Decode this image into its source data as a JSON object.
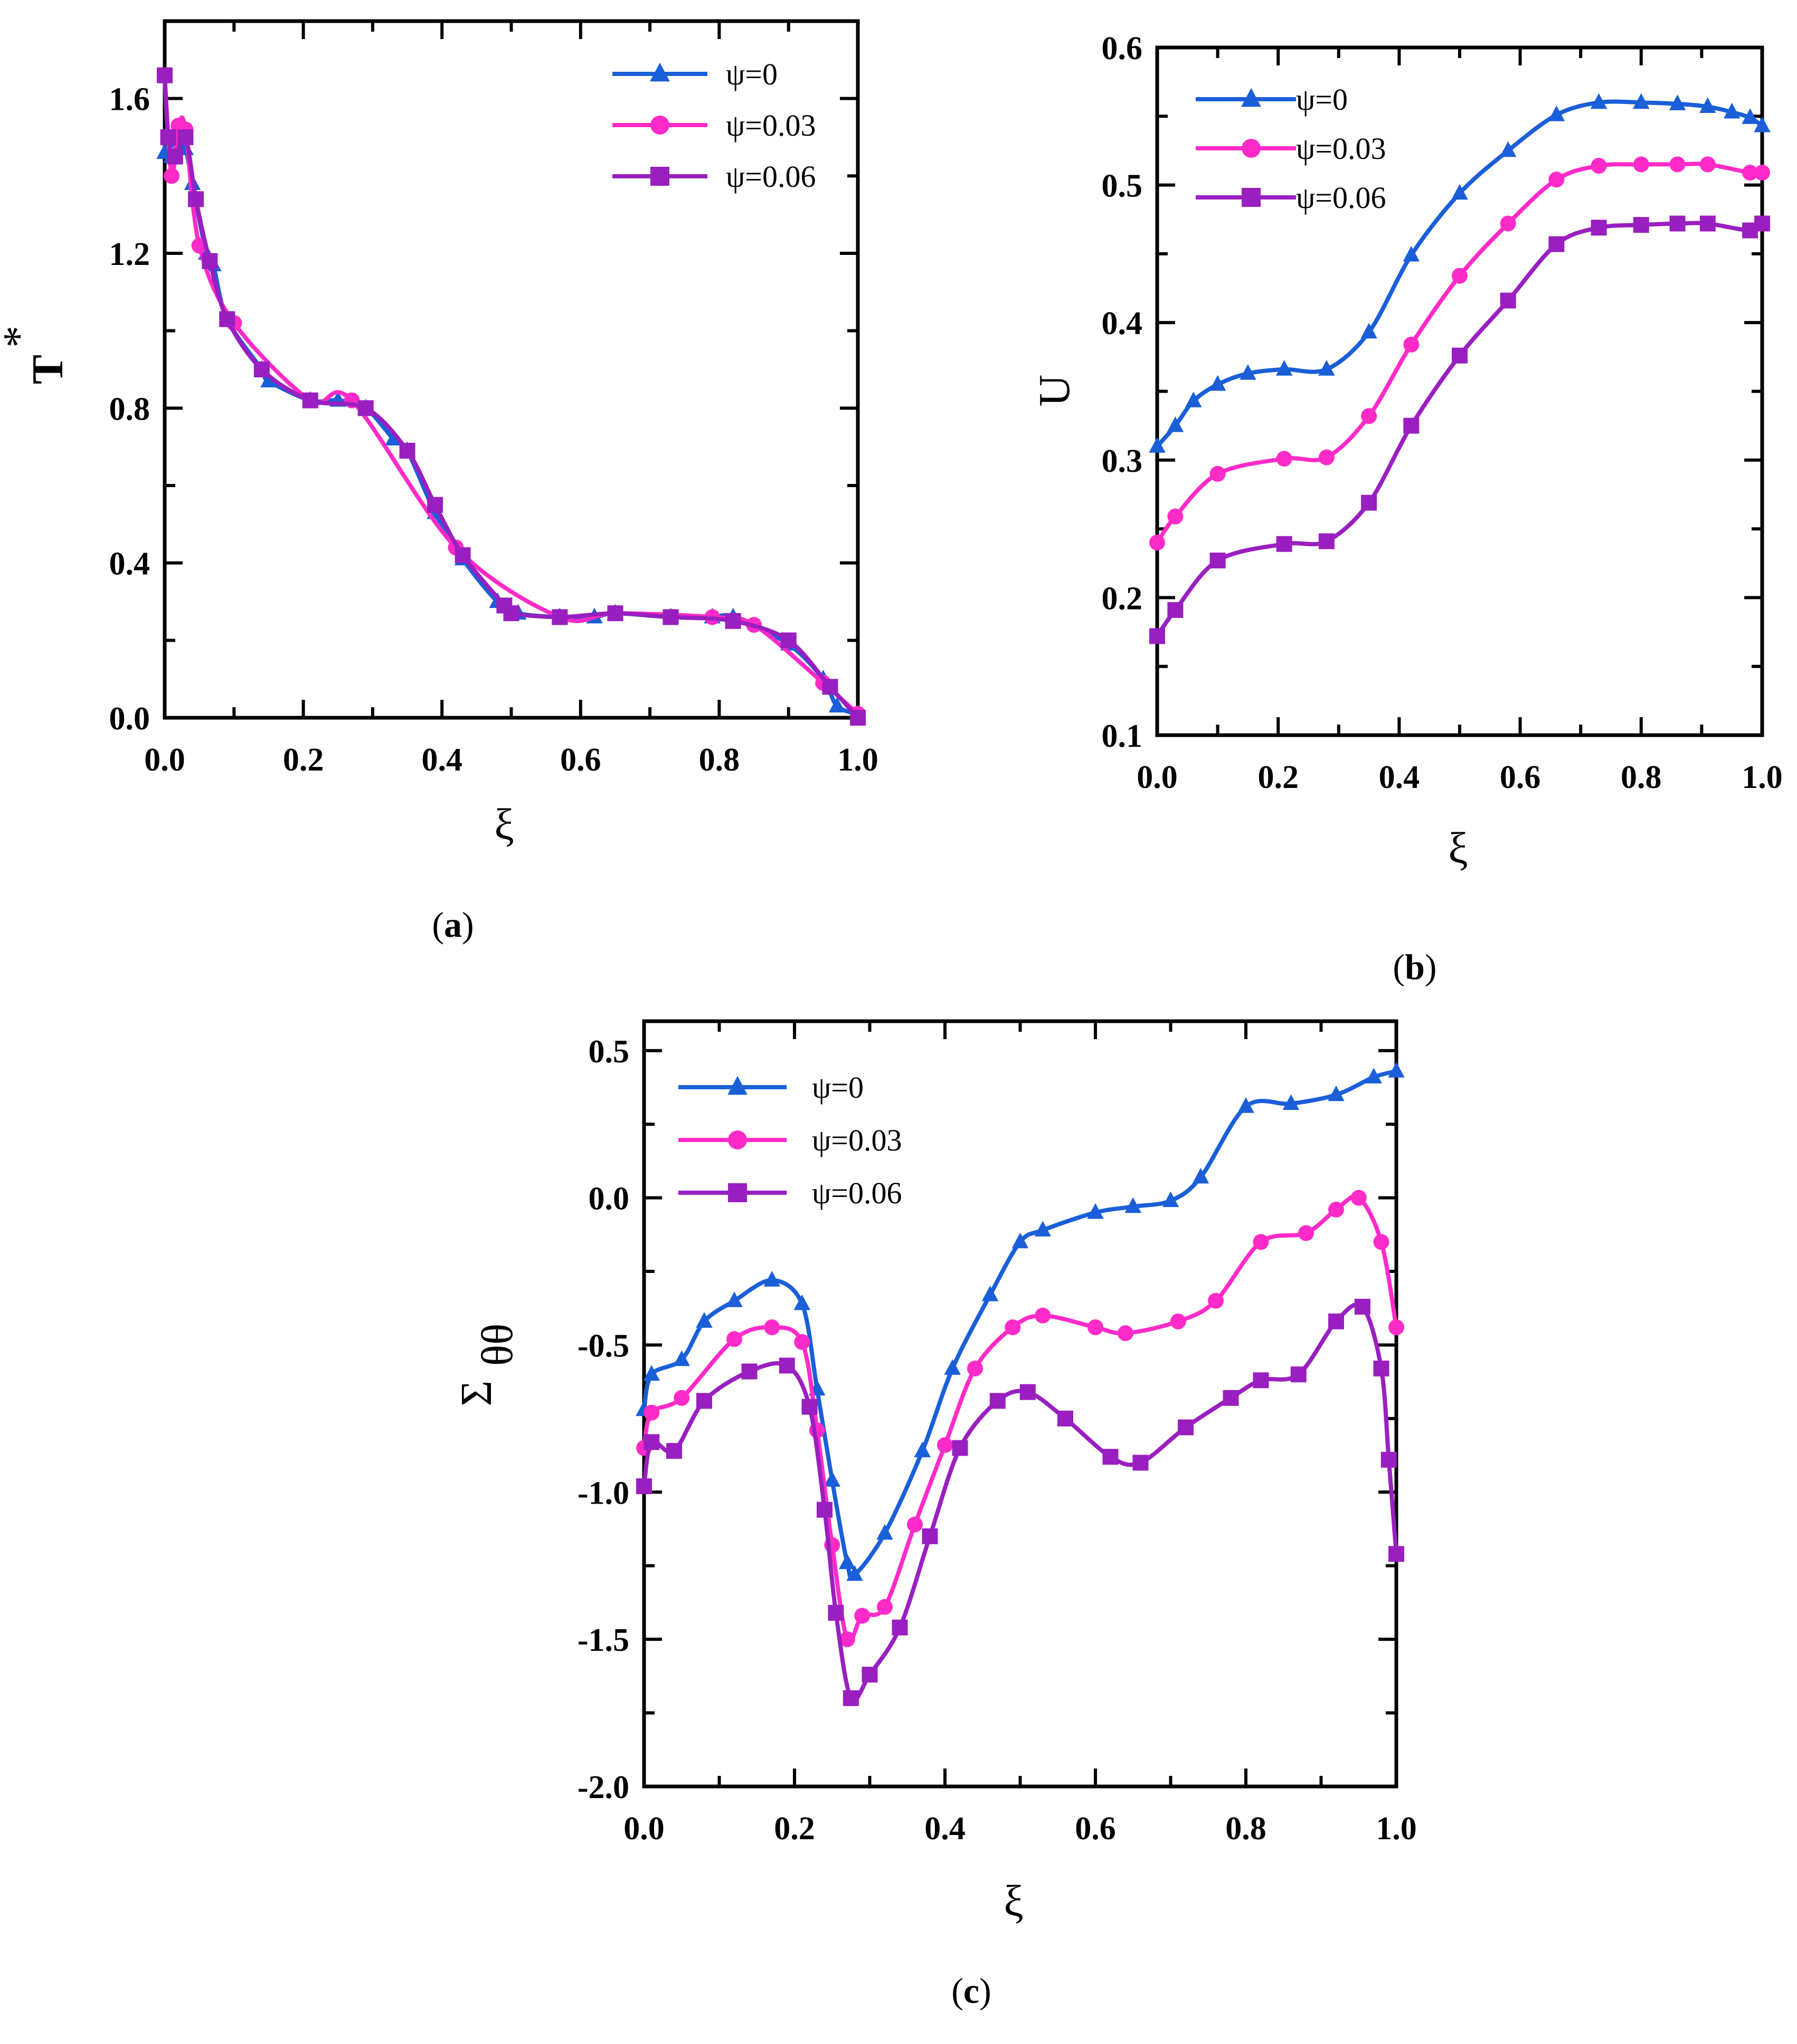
{
  "colors": {
    "psi0": "#1a5fd8",
    "psi003": "#ff2bc8",
    "psi006": "#9a1fc0"
  },
  "chart_data": [
    {
      "id": "a",
      "type": "line",
      "caption": "(a)",
      "caption_letter": "a",
      "xlabel": "ξ",
      "ylabel": "T",
      "ylabel_sup": "*",
      "xlim": [
        0,
        1.0
      ],
      "ylim": [
        0,
        1.8
      ],
      "xticks": [
        "0.0",
        "0.2",
        "0.4",
        "0.6",
        "0.8",
        "1.0"
      ],
      "yticks": [
        "0.0",
        "0.4",
        "0.8",
        "1.2",
        "1.6"
      ],
      "legend": [
        "ψ=0",
        "ψ=0.03",
        "ψ=0.06"
      ],
      "series": [
        {
          "name": "ψ=0",
          "marker": "triangle",
          "x": [
            0.0,
            0.01,
            0.02,
            0.03,
            0.04,
            0.06,
            0.07,
            0.09,
            0.14,
            0.15,
            0.21,
            0.25,
            0.29,
            0.33,
            0.35,
            0.39,
            0.43,
            0.48,
            0.51,
            0.57,
            0.62,
            0.65,
            0.73,
            0.79,
            0.82,
            0.9,
            0.95,
            0.97,
            1.0
          ],
          "y": [
            1.46,
            1.45,
            1.49,
            1.47,
            1.38,
            1.2,
            1.17,
            1.03,
            0.9,
            0.87,
            0.82,
            0.82,
            0.8,
            0.72,
            0.69,
            0.53,
            0.41,
            0.3,
            0.27,
            0.26,
            0.26,
            0.27,
            0.26,
            0.26,
            0.26,
            0.19,
            0.1,
            0.03,
            0.01
          ]
        },
        {
          "name": "ψ=0.03",
          "marker": "circle",
          "x": [
            0.0,
            0.01,
            0.02,
            0.03,
            0.05,
            0.1,
            0.21,
            0.27,
            0.42,
            0.57,
            0.65,
            0.79,
            0.85,
            0.95,
            1.0
          ],
          "y": [
            1.66,
            1.4,
            1.53,
            1.52,
            1.22,
            1.02,
            0.82,
            0.82,
            0.44,
            0.26,
            0.27,
            0.26,
            0.24,
            0.09,
            0.01
          ]
        },
        {
          "name": "ψ=0.06",
          "marker": "square",
          "x": [
            0.0,
            0.005,
            0.015,
            0.03,
            0.045,
            0.065,
            0.09,
            0.14,
            0.21,
            0.29,
            0.35,
            0.39,
            0.43,
            0.49,
            0.5,
            0.57,
            0.65,
            0.73,
            0.82,
            0.9,
            0.96,
            1.0
          ],
          "y": [
            1.66,
            1.5,
            1.45,
            1.5,
            1.34,
            1.18,
            1.03,
            0.9,
            0.82,
            0.8,
            0.69,
            0.55,
            0.42,
            0.29,
            0.27,
            0.26,
            0.27,
            0.26,
            0.25,
            0.2,
            0.08,
            0.0
          ]
        }
      ]
    },
    {
      "id": "b",
      "type": "line",
      "caption": "(b)",
      "caption_letter": "b",
      "xlabel": "ξ",
      "ylabel": "U",
      "xlim": [
        0,
        1.0
      ],
      "ylim": [
        0.1,
        0.6
      ],
      "xticks": [
        "0.0",
        "0.2",
        "0.4",
        "0.6",
        "0.8",
        "1.0"
      ],
      "yticks": [
        "0.1",
        "0.2",
        "0.3",
        "0.4",
        "0.5",
        "0.6"
      ],
      "legend": [
        "ψ=0",
        "ψ=0.03",
        "ψ=0.06"
      ],
      "series": [
        {
          "name": "ψ=0",
          "marker": "triangle",
          "x": [
            0.0,
            0.03,
            0.06,
            0.1,
            0.15,
            0.21,
            0.28,
            0.35,
            0.42,
            0.5,
            0.58,
            0.66,
            0.73,
            0.8,
            0.86,
            0.91,
            0.95,
            0.98,
            1.0
          ],
          "y": [
            0.31,
            0.325,
            0.343,
            0.355,
            0.363,
            0.366,
            0.366,
            0.393,
            0.449,
            0.494,
            0.525,
            0.551,
            0.56,
            0.56,
            0.559,
            0.557,
            0.553,
            0.549,
            0.543
          ]
        },
        {
          "name": "ψ=0.03",
          "marker": "circle",
          "x": [
            0.0,
            0.03,
            0.1,
            0.21,
            0.28,
            0.35,
            0.42,
            0.5,
            0.58,
            0.66,
            0.73,
            0.8,
            0.86,
            0.91,
            0.98,
            1.0
          ],
          "y": [
            0.24,
            0.259,
            0.29,
            0.301,
            0.302,
            0.332,
            0.384,
            0.434,
            0.472,
            0.504,
            0.514,
            0.515,
            0.515,
            0.515,
            0.509,
            0.509
          ]
        },
        {
          "name": "ψ=0.06",
          "marker": "square",
          "x": [
            0.0,
            0.03,
            0.1,
            0.21,
            0.28,
            0.35,
            0.42,
            0.5,
            0.58,
            0.66,
            0.73,
            0.8,
            0.86,
            0.91,
            0.98,
            1.0
          ],
          "y": [
            0.172,
            0.191,
            0.227,
            0.239,
            0.241,
            0.269,
            0.325,
            0.376,
            0.416,
            0.457,
            0.469,
            0.471,
            0.472,
            0.472,
            0.467,
            0.472
          ]
        }
      ]
    },
    {
      "id": "c",
      "type": "line",
      "caption": "(c)",
      "caption_letter": "c",
      "xlabel": "ξ",
      "ylabel": "Σ",
      "ylabel_sub": "θθ",
      "xlim": [
        0,
        1.0
      ],
      "ylim": [
        -2.0,
        0.6
      ],
      "xticks": [
        "0.0",
        "0.2",
        "0.4",
        "0.6",
        "0.8",
        "1.0"
      ],
      "yticks": [
        "-2.0",
        "-1.5",
        "-1.0",
        "-0.5",
        "0.0",
        "0.5"
      ],
      "legend": [
        "ψ=0",
        "ψ=0.03",
        "ψ=0.06"
      ],
      "series": [
        {
          "name": "ψ=0",
          "marker": "triangle",
          "x": [
            0.0,
            0.01,
            0.05,
            0.08,
            0.12,
            0.17,
            0.21,
            0.23,
            0.25,
            0.27,
            0.28,
            0.32,
            0.37,
            0.41,
            0.46,
            0.5,
            0.53,
            0.6,
            0.65,
            0.7,
            0.74,
            0.8,
            0.86,
            0.92,
            0.97,
            1.0
          ],
          "y": [
            -0.72,
            -0.6,
            -0.55,
            -0.42,
            -0.35,
            -0.28,
            -0.36,
            -0.65,
            -0.96,
            -1.24,
            -1.28,
            -1.14,
            -0.86,
            -0.58,
            -0.33,
            -0.15,
            -0.11,
            -0.05,
            -0.03,
            -0.01,
            0.07,
            0.31,
            0.32,
            0.35,
            0.41,
            0.43
          ]
        },
        {
          "name": "ψ=0.03",
          "marker": "circle",
          "x": [
            0.0,
            0.01,
            0.05,
            0.12,
            0.17,
            0.21,
            0.23,
            0.25,
            0.27,
            0.29,
            0.32,
            0.36,
            0.4,
            0.44,
            0.49,
            0.53,
            0.6,
            0.64,
            0.71,
            0.76,
            0.82,
            0.88,
            0.92,
            0.95,
            0.98,
            1.0
          ],
          "y": [
            -0.85,
            -0.73,
            -0.68,
            -0.48,
            -0.44,
            -0.49,
            -0.79,
            -1.18,
            -1.5,
            -1.42,
            -1.39,
            -1.11,
            -0.84,
            -0.58,
            -0.44,
            -0.4,
            -0.44,
            -0.46,
            -0.42,
            -0.35,
            -0.15,
            -0.12,
            -0.04,
            0.0,
            -0.15,
            -0.44
          ]
        },
        {
          "name": "ψ=0.06",
          "marker": "square",
          "x": [
            0.0,
            0.01,
            0.04,
            0.08,
            0.14,
            0.19,
            0.22,
            0.24,
            0.255,
            0.275,
            0.3,
            0.34,
            0.38,
            0.42,
            0.47,
            0.51,
            0.56,
            0.62,
            0.66,
            0.72,
            0.78,
            0.82,
            0.87,
            0.92,
            0.955,
            0.98,
            0.99,
            1.0
          ],
          "y": [
            -0.98,
            -0.83,
            -0.86,
            -0.69,
            -0.59,
            -0.57,
            -0.71,
            -1.06,
            -1.41,
            -1.7,
            -1.62,
            -1.46,
            -1.15,
            -0.85,
            -0.69,
            -0.66,
            -0.75,
            -0.88,
            -0.9,
            -0.78,
            -0.68,
            -0.62,
            -0.6,
            -0.42,
            -0.37,
            -0.58,
            -0.89,
            -1.21
          ]
        }
      ]
    }
  ]
}
